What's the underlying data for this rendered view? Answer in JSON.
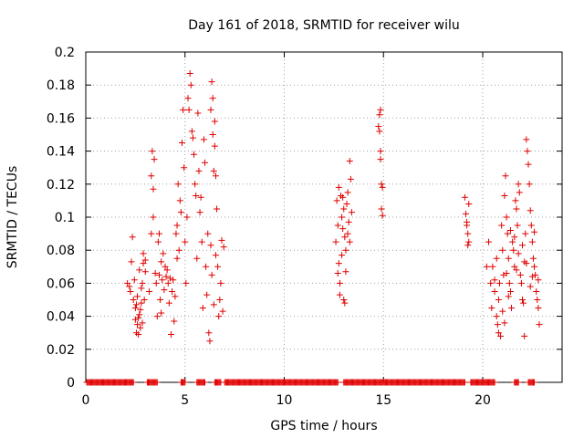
{
  "chart_data": {
    "type": "scatter",
    "title": "Day 161 of 2018, SRMTID for receiver wilu",
    "xlabel": "GPS time / hours",
    "ylabel": "SRMTID / TECUs",
    "xlim": [
      0,
      24
    ],
    "ylim": [
      0,
      0.2
    ],
    "xticks": [
      0,
      5,
      10,
      15,
      20
    ],
    "xtick_labels": [
      "0",
      "5",
      "10",
      "15",
      "20"
    ],
    "yticks": [
      0,
      0.02,
      0.04,
      0.06,
      0.08,
      0.1,
      0.12,
      0.14,
      0.16,
      0.18,
      0.2
    ],
    "ytick_labels": [
      "0",
      "0.02",
      "0.04",
      "0.06",
      "0.08",
      "0.1",
      "0.12",
      "0.14",
      "0.16",
      "0.18",
      "0.2"
    ],
    "grid": true,
    "marker": "+",
    "color": "#e00000",
    "series": [
      {
        "name": "SRMTID",
        "points": [
          [
            2.1,
            0.06
          ],
          [
            2.2,
            0.058
          ],
          [
            2.25,
            0.055
          ],
          [
            2.3,
            0.073
          ],
          [
            2.35,
            0.088
          ],
          [
            2.4,
            0.05
          ],
          [
            2.45,
            0.062
          ],
          [
            2.5,
            0.045
          ],
          [
            2.5,
            0.038
          ],
          [
            2.55,
            0.03
          ],
          [
            2.6,
            0.035
          ],
          [
            2.6,
            0.052
          ],
          [
            2.65,
            0.029
          ],
          [
            2.7,
            0.041
          ],
          [
            2.7,
            0.068
          ],
          [
            2.75,
            0.033
          ],
          [
            2.8,
            0.048
          ],
          [
            2.8,
            0.057
          ],
          [
            2.85,
            0.06
          ],
          [
            2.9,
            0.072
          ],
          [
            2.9,
            0.078
          ],
          [
            2.95,
            0.05
          ],
          [
            3.0,
            0.067
          ],
          [
            3.0,
            0.074
          ],
          [
            2.75,
            0.044
          ],
          [
            2.65,
            0.039
          ],
          [
            2.85,
            0.036
          ],
          [
            2.55,
            0.047
          ],
          [
            3.2,
            0.055
          ],
          [
            3.3,
            0.09
          ],
          [
            3.3,
            0.125
          ],
          [
            3.35,
            0.14
          ],
          [
            3.4,
            0.117
          ],
          [
            3.4,
            0.1
          ],
          [
            3.45,
            0.135
          ],
          [
            3.5,
            0.066
          ],
          [
            3.55,
            0.06
          ],
          [
            3.6,
            0.04
          ],
          [
            3.65,
            0.085
          ],
          [
            3.7,
            0.065
          ],
          [
            3.7,
            0.09
          ],
          [
            3.75,
            0.05
          ],
          [
            3.8,
            0.042
          ],
          [
            3.8,
            0.073
          ],
          [
            3.85,
            0.062
          ],
          [
            3.9,
            0.078
          ],
          [
            3.95,
            0.056
          ],
          [
            4.0,
            0.07
          ],
          [
            4.05,
            0.064
          ],
          [
            4.1,
            0.068
          ],
          [
            4.15,
            0.06
          ],
          [
            4.2,
            0.048
          ],
          [
            4.25,
            0.063
          ],
          [
            4.3,
            0.029
          ],
          [
            4.35,
            0.055
          ],
          [
            4.4,
            0.062
          ],
          [
            4.45,
            0.037
          ],
          [
            4.5,
            0.052
          ],
          [
            4.55,
            0.09
          ],
          [
            4.6,
            0.095
          ],
          [
            4.6,
            0.075
          ],
          [
            4.65,
            0.12
          ],
          [
            4.7,
            0.08
          ],
          [
            4.75,
            0.11
          ],
          [
            4.8,
            0.103
          ],
          [
            4.85,
            0.145
          ],
          [
            4.9,
            0.165
          ],
          [
            4.95,
            0.13
          ],
          [
            5.0,
            0.085
          ],
          [
            5.05,
            0.06
          ],
          [
            5.1,
            0.1
          ],
          [
            5.15,
            0.172
          ],
          [
            5.2,
            0.165
          ],
          [
            5.25,
            0.187
          ],
          [
            5.3,
            0.18
          ],
          [
            5.35,
            0.152
          ],
          [
            5.4,
            0.148
          ],
          [
            5.45,
            0.138
          ],
          [
            5.5,
            0.12
          ],
          [
            5.55,
            0.113
          ],
          [
            5.6,
            0.075
          ],
          [
            5.65,
            0.163
          ],
          [
            5.7,
            0.128
          ],
          [
            5.75,
            0.103
          ],
          [
            5.8,
            0.112
          ],
          [
            5.85,
            0.085
          ],
          [
            5.9,
            0.045
          ],
          [
            5.95,
            0.147
          ],
          [
            6.0,
            0.133
          ],
          [
            6.05,
            0.07
          ],
          [
            6.1,
            0.053
          ],
          [
            6.15,
            0.09
          ],
          [
            6.2,
            0.03
          ],
          [
            6.25,
            0.025
          ],
          [
            6.3,
            0.165
          ],
          [
            6.35,
            0.182
          ],
          [
            6.4,
            0.172
          ],
          [
            6.45,
            0.128
          ],
          [
            6.5,
            0.158
          ],
          [
            6.55,
            0.125
          ],
          [
            6.6,
            0.105
          ],
          [
            6.65,
            0.07
          ],
          [
            6.7,
            0.04
          ],
          [
            6.75,
            0.05
          ],
          [
            6.8,
            0.06
          ],
          [
            6.85,
            0.086
          ],
          [
            6.9,
            0.043
          ],
          [
            6.95,
            0.082
          ],
          [
            6.4,
            0.15
          ],
          [
            6.5,
            0.143
          ],
          [
            6.3,
            0.083
          ],
          [
            6.35,
            0.065
          ],
          [
            6.45,
            0.047
          ],
          [
            6.55,
            0.077
          ],
          [
            12.6,
            0.085
          ],
          [
            12.65,
            0.11
          ],
          [
            12.7,
            0.095
          ],
          [
            12.75,
            0.072
          ],
          [
            12.8,
            0.06
          ],
          [
            12.85,
            0.113
          ],
          [
            12.9,
            0.1
          ],
          [
            12.95,
            0.093
          ],
          [
            13.0,
            0.05
          ],
          [
            13.05,
            0.088
          ],
          [
            13.1,
            0.08
          ],
          [
            13.15,
            0.108
          ],
          [
            13.2,
            0.115
          ],
          [
            13.25,
            0.097
          ],
          [
            13.3,
            0.134
          ],
          [
            13.35,
            0.123
          ],
          [
            13.4,
            0.103
          ],
          [
            12.7,
            0.066
          ],
          [
            12.8,
            0.053
          ],
          [
            12.9,
            0.077
          ],
          [
            13.0,
            0.105
          ],
          [
            13.1,
            0.067
          ],
          [
            13.2,
            0.09
          ],
          [
            13.3,
            0.085
          ],
          [
            12.75,
            0.118
          ],
          [
            12.95,
            0.112
          ],
          [
            13.05,
            0.048
          ],
          [
            14.75,
            0.155
          ],
          [
            14.8,
            0.162
          ],
          [
            14.8,
            0.152
          ],
          [
            14.85,
            0.14
          ],
          [
            14.85,
            0.135
          ],
          [
            14.9,
            0.12
          ],
          [
            14.9,
            0.105
          ],
          [
            14.95,
            0.118
          ],
          [
            14.95,
            0.101
          ],
          [
            14.85,
            0.165
          ],
          [
            19.1,
            0.112
          ],
          [
            19.15,
            0.102
          ],
          [
            19.2,
            0.095
          ],
          [
            19.25,
            0.09
          ],
          [
            19.3,
            0.085
          ],
          [
            19.3,
            0.108
          ],
          [
            19.2,
            0.097
          ],
          [
            19.25,
            0.083
          ],
          [
            20.2,
            0.07
          ],
          [
            20.3,
            0.085
          ],
          [
            20.4,
            0.06
          ],
          [
            20.45,
            0.045
          ],
          [
            20.5,
            0.07
          ],
          [
            20.6,
            0.055
          ],
          [
            20.7,
            0.04
          ],
          [
            20.75,
            0.035
          ],
          [
            20.8,
            0.03
          ],
          [
            20.85,
            0.06
          ],
          [
            20.9,
            0.028
          ],
          [
            20.95,
            0.095
          ],
          [
            21.0,
            0.08
          ],
          [
            21.05,
            0.065
          ],
          [
            21.1,
            0.113
          ],
          [
            21.15,
            0.125
          ],
          [
            21.2,
            0.1
          ],
          [
            21.25,
            0.09
          ],
          [
            21.3,
            0.075
          ],
          [
            21.35,
            0.06
          ],
          [
            21.4,
            0.055
          ],
          [
            21.45,
            0.045
          ],
          [
            21.5,
            0.085
          ],
          [
            21.55,
            0.08
          ],
          [
            21.6,
            0.07
          ],
          [
            21.65,
            0.11
          ],
          [
            21.7,
            0.105
          ],
          [
            21.75,
            0.095
          ],
          [
            21.8,
            0.12
          ],
          [
            21.85,
            0.115
          ],
          [
            21.9,
            0.065
          ],
          [
            21.95,
            0.06
          ],
          [
            22.0,
            0.05
          ],
          [
            22.05,
            0.048
          ],
          [
            22.1,
            0.028
          ],
          [
            22.15,
            0.09
          ],
          [
            22.2,
            0.147
          ],
          [
            22.25,
            0.14
          ],
          [
            22.3,
            0.132
          ],
          [
            22.35,
            0.12
          ],
          [
            22.4,
            0.104
          ],
          [
            22.45,
            0.095
          ],
          [
            22.5,
            0.085
          ],
          [
            22.55,
            0.075
          ],
          [
            22.6,
            0.07
          ],
          [
            22.65,
            0.065
          ],
          [
            22.7,
            0.055
          ],
          [
            22.75,
            0.05
          ],
          [
            22.8,
            0.045
          ],
          [
            22.85,
            0.035
          ],
          [
            20.6,
            0.062
          ],
          [
            20.8,
            0.05
          ],
          [
            21.0,
            0.043
          ],
          [
            21.2,
            0.066
          ],
          [
            21.4,
            0.092
          ],
          [
            21.6,
            0.088
          ],
          [
            21.8,
            0.078
          ],
          [
            22.0,
            0.083
          ],
          [
            22.2,
            0.072
          ],
          [
            22.4,
            0.058
          ],
          [
            22.6,
            0.091
          ],
          [
            22.8,
            0.062
          ],
          [
            20.7,
            0.075
          ],
          [
            21.1,
            0.036
          ],
          [
            21.3,
            0.052
          ],
          [
            21.7,
            0.068
          ],
          [
            22.1,
            0.073
          ],
          [
            22.5,
            0.064
          ]
        ]
      },
      {
        "name": "zero",
        "ranges": [
          [
            0.05,
            2.4
          ],
          [
            3.1,
            3.6
          ],
          [
            4.8,
            5.0
          ],
          [
            5.6,
            6.0
          ],
          [
            6.5,
            6.8
          ],
          [
            7.0,
            12.7
          ],
          [
            13.0,
            19.1
          ],
          [
            19.4,
            20.6
          ],
          [
            21.6,
            21.8
          ],
          [
            22.3,
            22.6
          ]
        ]
      }
    ]
  }
}
